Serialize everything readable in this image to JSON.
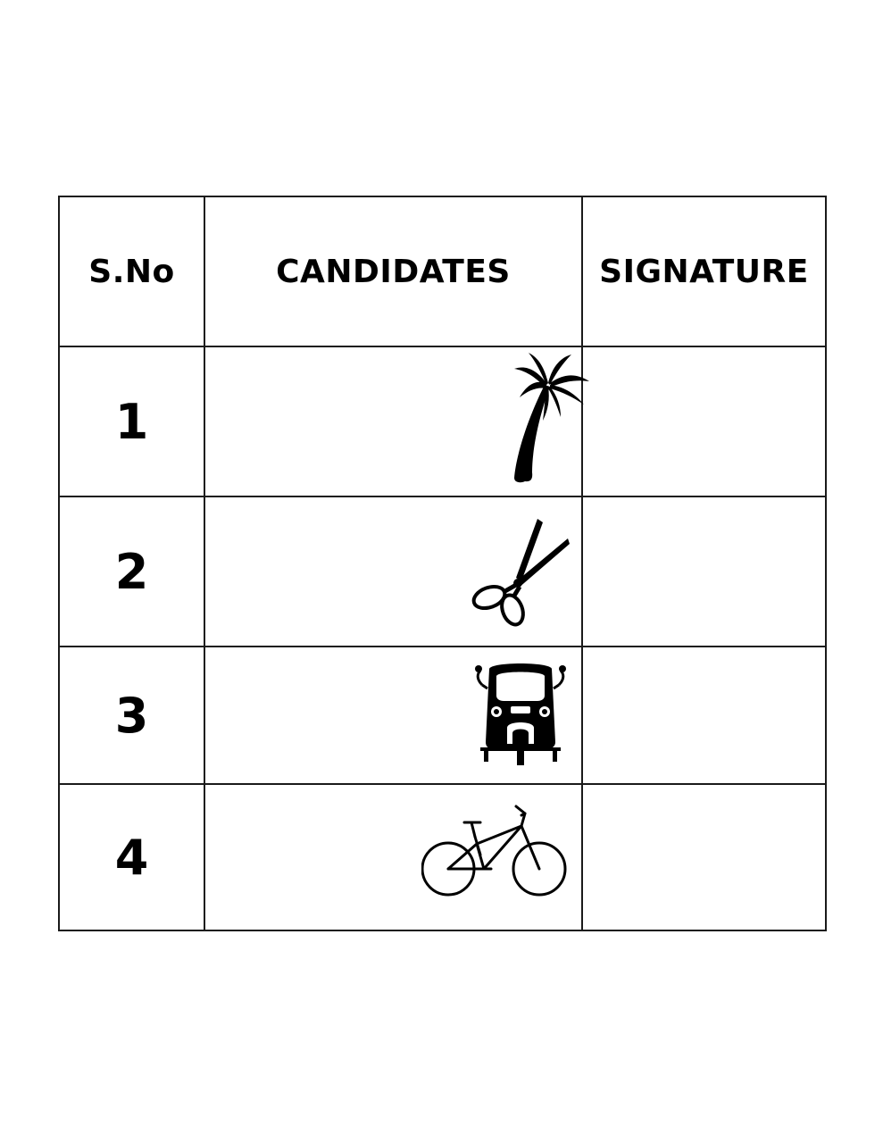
{
  "table": {
    "headers": {
      "sno": "S.No",
      "candidates": "CANDIDATES",
      "signature": "SIGNATURE"
    },
    "rows": [
      {
        "sno": "1",
        "symbol": "coconut-tree-icon",
        "signature": ""
      },
      {
        "sno": "2",
        "symbol": "scissors-icon",
        "signature": ""
      },
      {
        "sno": "3",
        "symbol": "auto-rickshaw-icon",
        "signature": ""
      },
      {
        "sno": "4",
        "symbol": "bicycle-icon",
        "signature": ""
      }
    ]
  }
}
